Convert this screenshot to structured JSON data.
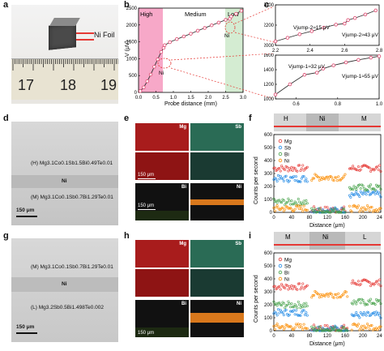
{
  "labels": {
    "a": "a",
    "b": "b",
    "c": "c",
    "d": "d",
    "e": "e",
    "f": "f",
    "g": "g",
    "h": "h",
    "i": "i"
  },
  "panel_a": {
    "foil_label": "Ni Foil",
    "ruler_numbers": [
      "17",
      "18",
      "19"
    ]
  },
  "panel_b": {
    "region_high": "High",
    "region_medium": "Medium",
    "region_low": "Low",
    "ni_left": "Ni",
    "ni_right": "Ni",
    "xlabel": "Probe distance (mm)",
    "ylabel": "V (μV)",
    "colors": {
      "high": "#f7a8c8",
      "low": "#c8e6c9",
      "line": "#333333",
      "marker": "#e0567a"
    }
  },
  "panel_c": {
    "top_annot_left": "Vjump-2≈15 μV",
    "top_annot_right": "Vjump-2≈43 μV",
    "bot_annot_left": "Vjump-1≈32 μV",
    "bot_annot_right": "Vjump-1≈55 μV"
  },
  "panel_d": {
    "top_label": "(H)  Mg3.1Co0.1Sb1.5Bi0.49Te0.01",
    "mid_label": "Ni",
    "bot_label": "(M)  Mg3.1Co0.1Sb0.7Bi1.29Te0.01",
    "scale": "150 μm"
  },
  "panel_e": {
    "maps": [
      "Mg",
      "Sb",
      "Bi",
      "Ni"
    ],
    "scale": "150 μm"
  },
  "panel_f": {
    "header": [
      "H",
      "Ni",
      "M"
    ],
    "ylabel": "Counts per second",
    "xlabel": "Distance (μm)",
    "legend": [
      "Mg",
      "Sb",
      "Bi",
      "Ni"
    ]
  },
  "panel_g": {
    "top_label": "(M)  Mg3.1Co0.1Sb0.7Bi1.29Te0.01",
    "mid_label": "Ni",
    "bot_label": "(L)  Mg3.2Sb0.5Bi1.498Te0.002",
    "scale": "150 μm"
  },
  "panel_h": {
    "maps": [
      "Mg",
      "Sb",
      "Bi",
      "Ni"
    ],
    "scale": "150 μm"
  },
  "panel_i": {
    "header": [
      "M",
      "Ni",
      "L"
    ],
    "ylabel": "Counts per second",
    "xlabel": "Distance (μm)",
    "legend": [
      "Mg",
      "Sb",
      "Bi",
      "Ni"
    ]
  },
  "chart_data": [
    {
      "type": "line",
      "id": "b",
      "xlabel": "Probe distance (mm)",
      "ylabel": "V (μV)",
      "xlim": [
        0,
        3.0
      ],
      "ylim": [
        0,
        2500
      ],
      "x_ticks": [
        "0.0",
        "0.5",
        "1.0",
        "1.5",
        "2.0",
        "2.5",
        "3.0"
      ],
      "y_ticks": [
        "0",
        "500",
        "1000",
        "1500",
        "2000",
        "2500"
      ],
      "x": [
        0.05,
        0.15,
        0.25,
        0.35,
        0.45,
        0.55,
        0.65,
        0.72,
        0.75,
        0.9,
        1.1,
        1.3,
        1.5,
        1.7,
        1.9,
        2.1,
        2.3,
        2.5,
        2.62,
        2.66,
        2.8,
        2.95
      ],
      "y": [
        40,
        150,
        330,
        530,
        760,
        980,
        1200,
        1320,
        1400,
        1490,
        1580,
        1660,
        1740,
        1830,
        1910,
        1990,
        2070,
        2150,
        2180,
        2250,
        2330,
        2420
      ]
    },
    {
      "type": "line",
      "id": "c-top",
      "xlim": [
        2.2,
        2.8
      ],
      "ylim": [
        2000,
        2400
      ],
      "x_ticks": [
        "2.2",
        "2.4",
        "2.6",
        "2.8"
      ],
      "y_ticks": [
        "2000",
        "2200",
        "2400"
      ],
      "x": [
        2.2,
        2.27,
        2.34,
        2.41,
        2.48,
        2.55,
        2.6,
        2.62,
        2.66,
        2.72,
        2.78
      ],
      "y": [
        2040,
        2075,
        2110,
        2140,
        2175,
        2205,
        2215,
        2250,
        2270,
        2305,
        2345
      ]
    },
    {
      "type": "line",
      "id": "c-bottom",
      "xlim": [
        0.5,
        1.0
      ],
      "ylim": [
        1000,
        1600
      ],
      "x_ticks": [
        "0.6",
        "0.8",
        "1.0"
      ],
      "y_ticks": [
        "1000",
        "1200",
        "1400",
        "1600"
      ],
      "x": [
        0.5,
        0.57,
        0.64,
        0.7,
        0.73,
        0.78,
        0.84,
        0.9,
        0.96,
        1.0
      ],
      "y": [
        1060,
        1200,
        1330,
        1360,
        1415,
        1460,
        1500,
        1535,
        1565,
        1585
      ]
    },
    {
      "type": "scatter",
      "id": "f",
      "xlabel": "Distance (μm)",
      "ylabel": "Counts per second",
      "xlim": [
        0,
        240
      ],
      "ylim": [
        0,
        600
      ],
      "x_ticks": [
        "0",
        "40",
        "80",
        "120",
        "160",
        "200",
        "240"
      ],
      "y_ticks": [
        "0",
        "100",
        "200",
        "300",
        "400",
        "500",
        "600"
      ],
      "series": [
        {
          "name": "Mg",
          "segments": [
            [
              0,
              75,
              340
            ],
            [
              85,
              160,
              20
            ],
            [
              170,
              240,
              340
            ]
          ]
        },
        {
          "name": "Sb",
          "segments": [
            [
              0,
              75,
              260
            ],
            [
              85,
              160,
              15
            ],
            [
              170,
              240,
              140
            ]
          ]
        },
        {
          "name": "Bi",
          "segments": [
            [
              0,
              75,
              80
            ],
            [
              85,
              160,
              10
            ],
            [
              170,
              240,
              190
            ]
          ]
        },
        {
          "name": "Ni",
          "segments": [
            [
              0,
              75,
              30
            ],
            [
              85,
              160,
              270
            ],
            [
              170,
              240,
              30
            ]
          ]
        }
      ]
    },
    {
      "type": "scatter",
      "id": "i",
      "xlabel": "Distance (μm)",
      "ylabel": "Counts per second",
      "xlim": [
        0,
        240
      ],
      "ylim": [
        0,
        600
      ],
      "x_ticks": [
        "0",
        "40",
        "80",
        "120",
        "160",
        "200",
        "240"
      ],
      "y_ticks": [
        "0",
        "100",
        "200",
        "300",
        "400",
        "500",
        "600"
      ],
      "series": [
        {
          "name": "Mg",
          "segments": [
            [
              0,
              75,
              340
            ],
            [
              85,
              165,
              20
            ],
            [
              175,
              240,
              370
            ]
          ]
        },
        {
          "name": "Sb",
          "segments": [
            [
              0,
              75,
              140
            ],
            [
              85,
              165,
              15
            ],
            [
              175,
              240,
              120
            ]
          ]
        },
        {
          "name": "Bi",
          "segments": [
            [
              0,
              75,
              200
            ],
            [
              85,
              165,
              10
            ],
            [
              175,
              240,
              220
            ]
          ]
        },
        {
          "name": "Ni",
          "segments": [
            [
              0,
              75,
              30
            ],
            [
              85,
              165,
              280
            ],
            [
              175,
              240,
              30
            ]
          ]
        }
      ]
    }
  ]
}
